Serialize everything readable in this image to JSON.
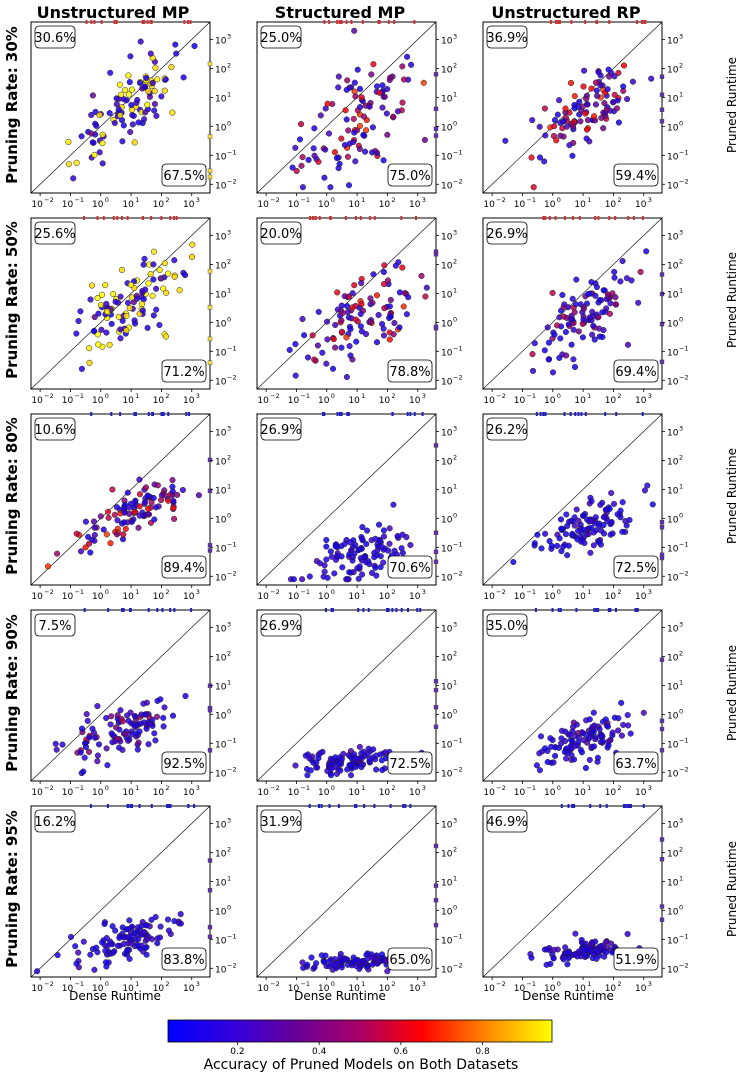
{
  "figure": {
    "column_titles": [
      "Unstructured MP",
      "Structured MP",
      "Unstructured RP"
    ],
    "row_labels": [
      "Pruning Rate: 30%",
      "Pruning Rate: 50%",
      "Pruning Rate: 80%",
      "Pruning Rate: 90%",
      "Pruning Rate: 95%"
    ],
    "xlabel": "Dense Runtime",
    "right_ylabel": "Pruned Runtime",
    "x_tick_exponents": [
      "-2",
      "-1",
      "0",
      "1",
      "2",
      "3"
    ],
    "y_tick_exponents": [
      "-2",
      "-1",
      "0",
      "1",
      "2",
      "3"
    ],
    "tick_base": "10",
    "colorbar": {
      "label": "Accuracy of Pruned Models on Both Datasets",
      "ticks": [
        "0.2",
        "0.4",
        "0.6",
        "0.8"
      ],
      "colormap": [
        "#0000ff",
        "#3300dd",
        "#660099",
        "#aa0066",
        "#ff0000",
        "#ff8800",
        "#ffff00"
      ]
    }
  },
  "chart_data": [
    {
      "type": "scatter",
      "row": 0,
      "col": 0,
      "upper_pct": "30.6%",
      "lower_pct": "67.5%",
      "xscale": "log",
      "yscale": "log",
      "xlim": [
        0.005,
        4000
      ],
      "ylim": [
        0.005,
        4000
      ],
      "diagonal": true,
      "colors": "mixed-yellow"
    },
    {
      "type": "scatter",
      "row": 0,
      "col": 1,
      "upper_pct": "25.0%",
      "lower_pct": "75.0%",
      "xscale": "log",
      "yscale": "log",
      "xlim": [
        0.005,
        4000
      ],
      "ylim": [
        0.005,
        4000
      ],
      "diagonal": true,
      "colors": "mixed-red"
    },
    {
      "type": "scatter",
      "row": 0,
      "col": 2,
      "upper_pct": "36.9%",
      "lower_pct": "59.4%",
      "xscale": "log",
      "yscale": "log",
      "xlim": [
        0.005,
        4000
      ],
      "ylim": [
        0.005,
        4000
      ],
      "diagonal": true,
      "colors": "mixed-red"
    },
    {
      "type": "scatter",
      "row": 1,
      "col": 0,
      "upper_pct": "25.6%",
      "lower_pct": "71.2%",
      "xscale": "log",
      "yscale": "log",
      "xlim": [
        0.005,
        4000
      ],
      "ylim": [
        0.005,
        4000
      ],
      "diagonal": true,
      "colors": "mixed-yellow"
    },
    {
      "type": "scatter",
      "row": 1,
      "col": 1,
      "upper_pct": "20.0%",
      "lower_pct": "78.8%",
      "xscale": "log",
      "yscale": "log",
      "xlim": [
        0.005,
        4000
      ],
      "ylim": [
        0.005,
        4000
      ],
      "diagonal": true,
      "colors": "mixed-red"
    },
    {
      "type": "scatter",
      "row": 1,
      "col": 2,
      "upper_pct": "26.9%",
      "lower_pct": "69.4%",
      "xscale": "log",
      "yscale": "log",
      "xlim": [
        0.005,
        4000
      ],
      "ylim": [
        0.005,
        4000
      ],
      "diagonal": true,
      "colors": "mostly-blue"
    },
    {
      "type": "scatter",
      "row": 2,
      "col": 0,
      "upper_pct": "10.6%",
      "lower_pct": "89.4%",
      "xscale": "log",
      "yscale": "log",
      "xlim": [
        0.005,
        4000
      ],
      "ylim": [
        0.005,
        4000
      ],
      "diagonal": true,
      "colors": "mixed-red"
    },
    {
      "type": "scatter",
      "row": 2,
      "col": 1,
      "upper_pct": "26.9%",
      "lower_pct": "70.6%",
      "xscale": "log",
      "yscale": "log",
      "xlim": [
        0.005,
        4000
      ],
      "ylim": [
        0.005,
        4000
      ],
      "diagonal": true,
      "colors": "blue"
    },
    {
      "type": "scatter",
      "row": 2,
      "col": 2,
      "upper_pct": "26.2%",
      "lower_pct": "72.5%",
      "xscale": "log",
      "yscale": "log",
      "xlim": [
        0.005,
        4000
      ],
      "ylim": [
        0.005,
        4000
      ],
      "diagonal": true,
      "colors": "blue"
    },
    {
      "type": "scatter",
      "row": 3,
      "col": 0,
      "upper_pct": "7.5%",
      "lower_pct": "92.5%",
      "xscale": "log",
      "yscale": "log",
      "xlim": [
        0.005,
        4000
      ],
      "ylim": [
        0.005,
        4000
      ],
      "diagonal": true,
      "colors": "mostly-blue"
    },
    {
      "type": "scatter",
      "row": 3,
      "col": 1,
      "upper_pct": "26.9%",
      "lower_pct": "72.5%",
      "xscale": "log",
      "yscale": "log",
      "xlim": [
        0.005,
        4000
      ],
      "ylim": [
        0.005,
        4000
      ],
      "diagonal": true,
      "colors": "blue"
    },
    {
      "type": "scatter",
      "row": 3,
      "col": 2,
      "upper_pct": "35.0%",
      "lower_pct": "63.7%",
      "xscale": "log",
      "yscale": "log",
      "xlim": [
        0.005,
        4000
      ],
      "ylim": [
        0.005,
        4000
      ],
      "diagonal": true,
      "colors": "blue"
    },
    {
      "type": "scatter",
      "row": 4,
      "col": 0,
      "upper_pct": "16.2%",
      "lower_pct": "83.8%",
      "xscale": "log",
      "yscale": "log",
      "xlim": [
        0.005,
        4000
      ],
      "ylim": [
        0.005,
        4000
      ],
      "diagonal": true,
      "colors": "blue"
    },
    {
      "type": "scatter",
      "row": 4,
      "col": 1,
      "upper_pct": "31.9%",
      "lower_pct": "65.0%",
      "xscale": "log",
      "yscale": "log",
      "xlim": [
        0.005,
        4000
      ],
      "ylim": [
        0.005,
        4000
      ],
      "diagonal": true,
      "colors": "blue"
    },
    {
      "type": "scatter",
      "row": 4,
      "col": 2,
      "upper_pct": "46.9%",
      "lower_pct": "51.9%",
      "xscale": "log",
      "yscale": "log",
      "xlim": [
        0.005,
        4000
      ],
      "ylim": [
        0.005,
        4000
      ],
      "diagonal": true,
      "colors": "blue"
    }
  ]
}
